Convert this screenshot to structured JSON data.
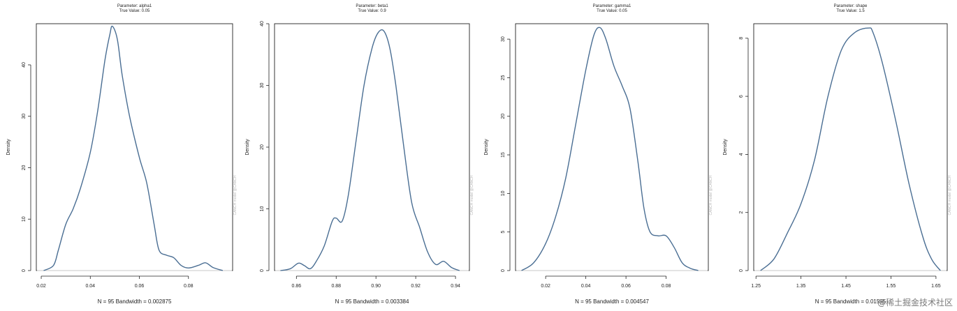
{
  "chart_data": [
    {
      "type": "line",
      "title": "Parameter: alpha1",
      "subtitle": "True Value:  0.05",
      "xlabel": "N = 95   Bandwidth = 0.002875",
      "ylabel": "Density",
      "xlim": [
        0.018,
        0.098
      ],
      "ylim": [
        0,
        48
      ],
      "xticks": [
        0.02,
        0.04,
        0.06,
        0.08
      ],
      "xtick_labels": [
        "0.02",
        "0.04",
        "0.06",
        "0.08"
      ],
      "yticks": [
        0,
        10,
        20,
        30,
        40
      ],
      "ytick_labels": [
        "0",
        "10",
        "20",
        "30",
        "40"
      ],
      "grid": false,
      "series": [
        {
          "x": [
            0.021,
            0.025,
            0.027,
            0.03,
            0.033,
            0.036,
            0.04,
            0.043,
            0.046,
            0.048,
            0.049,
            0.051,
            0.053,
            0.056,
            0.06,
            0.063,
            0.066,
            0.068,
            0.071,
            0.074,
            0.077,
            0.08,
            0.084,
            0.087,
            0.09,
            0.094
          ],
          "y": [
            0,
            1,
            4,
            9,
            12,
            16,
            23,
            31,
            41,
            46,
            47.5,
            45,
            38,
            30,
            22,
            17,
            9,
            4,
            3,
            2.5,
            1,
            0.5,
            1,
            1.5,
            0.6,
            0
          ]
        }
      ],
      "watermark": "CANCH model  @CANCH"
    },
    {
      "type": "line",
      "title": "Parameter: beta1",
      "subtitle": "True Value:  0.9",
      "xlabel": "N = 95   Bandwidth = 0.003384",
      "ylabel": "Density",
      "xlim": [
        0.849,
        0.947
      ],
      "ylim": [
        0,
        40
      ],
      "xticks": [
        0.86,
        0.88,
        0.9,
        0.92,
        0.94
      ],
      "xtick_labels": [
        "0.86",
        "0.88",
        "0.90",
        "0.92",
        "0.94"
      ],
      "yticks": [
        0,
        10,
        20,
        30,
        40
      ],
      "ytick_labels": [
        "0",
        "10",
        "20",
        "30",
        "40"
      ],
      "grid": false,
      "series": [
        {
          "x": [
            0.852,
            0.857,
            0.861,
            0.864,
            0.867,
            0.87,
            0.874,
            0.878,
            0.88,
            0.883,
            0.886,
            0.89,
            0.894,
            0.898,
            0.901,
            0.904,
            0.907,
            0.91,
            0.914,
            0.918,
            0.922,
            0.926,
            0.93,
            0.934,
            0.938,
            0.942
          ],
          "y": [
            0,
            0.3,
            1.2,
            0.8,
            0.3,
            1.5,
            4,
            8,
            8.5,
            8,
            12,
            21,
            30,
            36,
            38.5,
            38.8,
            36,
            30,
            20,
            11,
            7,
            3,
            1,
            1.5,
            0.5,
            0
          ]
        }
      ],
      "watermark": "CANCH model  @CANCH"
    },
    {
      "type": "line",
      "title": "Parameter: gamma1",
      "subtitle": "True Value:  0.05",
      "xlabel": "N = 95   Bandwidth = 0.004547",
      "ylabel": "Density",
      "xlim": [
        0.005,
        0.101
      ],
      "ylim": [
        0,
        32
      ],
      "xticks": [
        0.02,
        0.04,
        0.06,
        0.08
      ],
      "xtick_labels": [
        "0.02",
        "0.04",
        "0.06",
        "0.08"
      ],
      "yticks": [
        0,
        5,
        10,
        15,
        20,
        25,
        30
      ],
      "ytick_labels": [
        "0",
        "5",
        "10",
        "15",
        "20",
        "25",
        "30"
      ],
      "grid": false,
      "series": [
        {
          "x": [
            0.008,
            0.014,
            0.02,
            0.025,
            0.03,
            0.035,
            0.04,
            0.044,
            0.047,
            0.05,
            0.054,
            0.058,
            0.062,
            0.066,
            0.069,
            0.072,
            0.076,
            0.08,
            0.084,
            0.088,
            0.092,
            0.096
          ],
          "y": [
            0,
            1,
            3.5,
            7,
            12,
            19,
            26,
            30.5,
            31.5,
            30,
            26.5,
            24,
            21,
            14,
            8,
            5,
            4.5,
            4.5,
            3,
            1,
            0.3,
            0
          ]
        }
      ],
      "watermark": "CANCH model  @CANCH"
    },
    {
      "type": "line",
      "title": "Parameter: shape",
      "subtitle": "True Value:  1.5",
      "xlabel": "N = 95   Bandwidth = 0.01595",
      "ylabel": "Density",
      "xlim": [
        1.245,
        1.675
      ],
      "ylim": [
        0,
        8.5
      ],
      "xticks": [
        1.25,
        1.35,
        1.45,
        1.55,
        1.65
      ],
      "xtick_labels": [
        "1.25",
        "1.35",
        "1.45",
        "1.55",
        "1.65"
      ],
      "yticks": [
        0,
        2,
        4,
        6,
        8
      ],
      "ytick_labels": [
        "0",
        "2",
        "4",
        "6",
        "8"
      ],
      "grid": false,
      "series": [
        {
          "x": [
            1.26,
            1.29,
            1.32,
            1.35,
            1.38,
            1.41,
            1.44,
            1.47,
            1.5,
            1.51,
            1.53,
            1.56,
            1.59,
            1.62,
            1.64,
            1.66
          ],
          "y": [
            0,
            0.4,
            1.3,
            2.3,
            3.8,
            6.0,
            7.6,
            8.2,
            8.35,
            8.2,
            7.2,
            5.2,
            3.0,
            1.2,
            0.4,
            0
          ]
        }
      ],
      "watermark": "CANCH model  @CANCH"
    }
  ],
  "page_watermark": "@稀土掘金技术社区"
}
